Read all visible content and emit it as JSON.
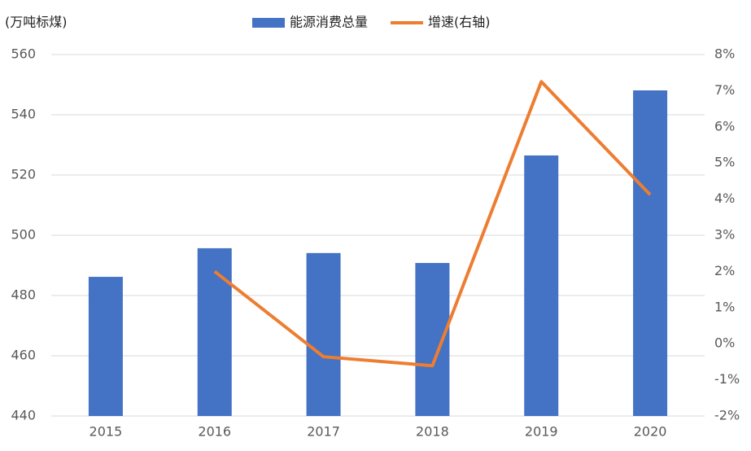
{
  "chart_data": {
    "type": "bar",
    "y_label": "(万吨标煤)",
    "categories": [
      "2015",
      "2016",
      "2017",
      "2018",
      "2019",
      "2020"
    ],
    "series": [
      {
        "name": "能源消费总量",
        "type": "bar",
        "color": "#4472c4",
        "values": [
          486.2,
          495.7,
          494.1,
          490.8,
          526.5,
          548.1
        ]
      },
      {
        "name": "增速(右轴)",
        "type": "line",
        "axis": "y2",
        "color": "#ed7d31",
        "values": [
          null,
          2.0,
          -0.36,
          -0.61,
          7.25,
          4.12
        ]
      }
    ],
    "ylim": [
      440,
      560
    ],
    "yticks": [
      440,
      460,
      480,
      500,
      520,
      540,
      560
    ],
    "y2lim": [
      -2,
      8
    ],
    "y2ticks": [
      {
        "value": -2,
        "label": "-2%"
      },
      {
        "value": -1,
        "label": "-1%"
      },
      {
        "value": 0,
        "label": "0%"
      },
      {
        "value": 1,
        "label": "1%"
      },
      {
        "value": 2,
        "label": "2%"
      },
      {
        "value": 3,
        "label": "3%"
      },
      {
        "value": 4,
        "label": "4%"
      },
      {
        "value": 5,
        "label": "5%"
      },
      {
        "value": 6,
        "label": "6%"
      },
      {
        "value": 7,
        "label": "7%"
      },
      {
        "value": 8,
        "label": "8%"
      }
    ],
    "grid": true,
    "legend": "top"
  }
}
